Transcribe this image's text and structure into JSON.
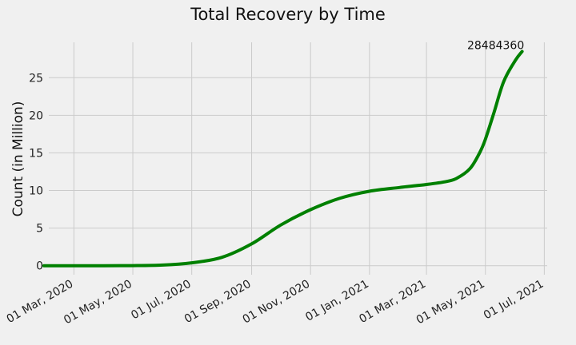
{
  "chart_data": {
    "type": "line",
    "title": "Total Recovery by Time",
    "xlabel": "",
    "ylabel": "Count (in Million)",
    "ylim": [
      -1.2,
      29.7
    ],
    "xlim": [
      "2020-02-04",
      "2021-07-04"
    ],
    "grid": true,
    "x_ticks": [
      "2020-03-01",
      "2020-05-01",
      "2020-07-01",
      "2020-09-01",
      "2020-11-01",
      "2021-01-01",
      "2021-03-01",
      "2021-05-01",
      "2021-07-01"
    ],
    "x_tick_labels": [
      "01 Mar, 2020",
      "01 May, 2020",
      "01 Jul, 2020",
      "01 Sep, 2020",
      "01 Nov, 2020",
      "01 Jan, 2021",
      "01 Mar, 2021",
      "01 May, 2021",
      "01 Jul, 2021"
    ],
    "y_ticks": [
      0,
      5,
      10,
      15,
      20,
      25
    ],
    "y_tick_labels": [
      "0",
      "5",
      "10",
      "15",
      "20",
      "25"
    ],
    "series": [
      {
        "color": "#008000",
        "points": [
          [
            "2020-01-30",
            0
          ],
          [
            "2020-03-01",
            0
          ],
          [
            "2020-04-01",
            0
          ],
          [
            "2020-05-01",
            0.01
          ],
          [
            "2020-06-01",
            0.08
          ],
          [
            "2020-07-01",
            0.38
          ],
          [
            "2020-08-01",
            1.1
          ],
          [
            "2020-09-01",
            2.9
          ],
          [
            "2020-10-01",
            5.4
          ],
          [
            "2020-11-01",
            7.45
          ],
          [
            "2020-12-01",
            8.95
          ],
          [
            "2021-01-01",
            9.9
          ],
          [
            "2021-02-01",
            10.4
          ],
          [
            "2021-03-01",
            10.8
          ],
          [
            "2021-03-20",
            11.15
          ],
          [
            "2021-04-01",
            11.6
          ],
          [
            "2021-04-15",
            12.9
          ],
          [
            "2021-04-25",
            15.0
          ],
          [
            "2021-05-01",
            16.8
          ],
          [
            "2021-05-10",
            20.4
          ],
          [
            "2021-05-20",
            24.5
          ],
          [
            "2021-06-01",
            27.3
          ],
          [
            "2021-06-08",
            28.48
          ]
        ]
      }
    ],
    "annotation": {
      "text": "28484360",
      "x": "2021-06-08",
      "y": 28.48
    }
  }
}
